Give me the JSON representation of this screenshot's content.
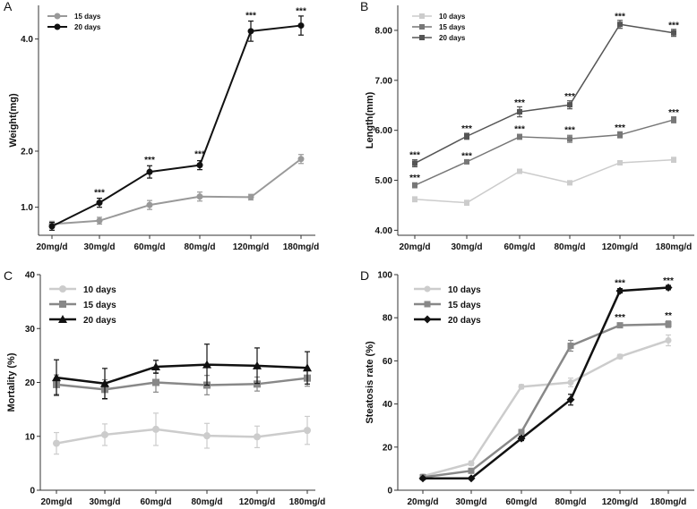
{
  "chart_data": [
    {
      "panel": "A",
      "type": "line",
      "categories": [
        "20mg/d",
        "30mg/d",
        "60mg/d",
        "80mg/d",
        "120mg/d",
        "180mg/d"
      ],
      "ylabel": "Weight(mg)",
      "ylim": [
        0.5,
        4.6
      ],
      "yticks": [
        1.0,
        2.0,
        4.0
      ],
      "ytick_labels": [
        "1.0",
        "2.0",
        "4.0"
      ],
      "legend": "top-left",
      "series": [
        {
          "name": "15 days",
          "color": "#999999",
          "marker": "circle",
          "values": [
            0.7,
            0.76,
            1.04,
            1.19,
            1.18,
            1.86
          ],
          "errors": [
            0.05,
            0.06,
            0.08,
            0.08,
            0.05,
            0.08
          ]
        },
        {
          "name": "20 days",
          "color": "#111111",
          "marker": "circle",
          "values": [
            0.66,
            1.08,
            1.63,
            1.75,
            4.14,
            4.24
          ],
          "errors": [
            0.07,
            0.08,
            0.11,
            0.08,
            0.18,
            0.17
          ]
        }
      ],
      "annotations": [
        {
          "category": 1,
          "text": "***",
          "y": 1.26
        },
        {
          "category": 2,
          "text": "***",
          "y": 1.84
        },
        {
          "category": 3,
          "text": "***",
          "y": 1.94
        },
        {
          "category": 4,
          "text": "***",
          "y": 4.42
        },
        {
          "category": 5,
          "text": "***",
          "y": 4.5
        }
      ]
    },
    {
      "panel": "B",
      "type": "line",
      "categories": [
        "20mg/d",
        "30mg/d",
        "60mg/d",
        "80mg/d",
        "120mg/d",
        "180mg/d"
      ],
      "ylabel": "Length(mm)",
      "ylim": [
        3.9,
        8.5
      ],
      "yticks": [
        4.0,
        5.0,
        6.0,
        7.0,
        8.0
      ],
      "ytick_labels": [
        "4.00",
        "5.00",
        "6.00",
        "7.00",
        "8.00"
      ],
      "legend": "top-left",
      "series": [
        {
          "name": "10 days",
          "color": "#cccccc",
          "marker": "square",
          "values": [
            4.62,
            4.55,
            5.18,
            4.95,
            5.35,
            5.41
          ],
          "errors": [
            0.05,
            0.05,
            0.04,
            0.04,
            0.03,
            0.05
          ]
        },
        {
          "name": "15 days",
          "color": "#777777",
          "marker": "square",
          "values": [
            4.9,
            5.37,
            5.87,
            5.83,
            5.91,
            6.21
          ],
          "errors": [
            0.05,
            0.04,
            0.05,
            0.07,
            0.06,
            0.06
          ]
        },
        {
          "name": "20 days",
          "color": "#555555",
          "marker": "square",
          "values": [
            5.34,
            5.88,
            6.37,
            6.51,
            8.12,
            7.95
          ],
          "errors": [
            0.07,
            0.06,
            0.1,
            0.08,
            0.08,
            0.07
          ]
        }
      ],
      "annotations": [
        {
          "category": 0,
          "text": "***",
          "y": 5.05
        },
        {
          "category": 0,
          "text": "***",
          "y": 5.5
        },
        {
          "category": 1,
          "text": "***",
          "y": 5.48
        },
        {
          "category": 1,
          "text": "***",
          "y": 6.03
        },
        {
          "category": 2,
          "text": "***",
          "y": 6.02
        },
        {
          "category": 2,
          "text": "***",
          "y": 6.55
        },
        {
          "category": 3,
          "text": "***",
          "y": 6.0
        },
        {
          "category": 3,
          "text": "***",
          "y": 6.67
        },
        {
          "category": 4,
          "text": "***",
          "y": 6.05
        },
        {
          "category": 4,
          "text": "***",
          "y": 8.28
        },
        {
          "category": 5,
          "text": "***",
          "y": 6.35
        },
        {
          "category": 5,
          "text": "***",
          "y": 8.1
        }
      ]
    },
    {
      "panel": "C",
      "type": "line",
      "categories": [
        "20mg/d",
        "30mg/d",
        "60mg/d",
        "80mg/d",
        "120mg/d",
        "180mg/d"
      ],
      "ylabel": "Mortality (%)",
      "ylim": [
        0,
        40
      ],
      "yticks": [
        0,
        10,
        20,
        30,
        40
      ],
      "ytick_labels": [
        "0",
        "10",
        "20",
        "30",
        "40"
      ],
      "legend": "top-left",
      "series": [
        {
          "name": "10 days",
          "color": "#cccccc",
          "marker": "circle",
          "values": [
            8.7,
            10.3,
            11.3,
            10.1,
            9.9,
            11.1
          ],
          "errors": [
            2.0,
            2.0,
            3.0,
            2.3,
            2.0,
            2.6
          ]
        },
        {
          "name": "15 days",
          "color": "#888888",
          "marker": "square",
          "values": [
            19.6,
            18.7,
            20.0,
            19.5,
            19.7,
            20.8
          ],
          "errors": [
            1.8,
            1.8,
            1.8,
            1.8,
            1.3,
            1.5
          ]
        },
        {
          "name": "20 days",
          "color": "#111111",
          "marker": "triangle",
          "values": [
            20.9,
            19.8,
            22.9,
            23.3,
            23.1,
            22.7
          ],
          "errors": [
            3.3,
            2.8,
            1.2,
            3.8,
            3.3,
            3.0
          ]
        }
      ],
      "annotations": []
    },
    {
      "panel": "D",
      "type": "line",
      "categories": [
        "20mg/d",
        "30mg/d",
        "60mg/d",
        "80mg/d",
        "120mg/d",
        "180mg/d"
      ],
      "ylabel": "Steatosis rate (%)",
      "ylim": [
        0,
        100
      ],
      "yticks": [
        0,
        20,
        40,
        60,
        80,
        100
      ],
      "ytick_labels": [
        "0",
        "20",
        "40",
        "60",
        "80",
        "100"
      ],
      "legend": "top-left",
      "series": [
        {
          "name": "10 days",
          "color": "#cccccc",
          "marker": "circle",
          "values": [
            6.5,
            12.5,
            48.0,
            50.0,
            62.0,
            69.5
          ],
          "errors": [
            1.0,
            1.0,
            1.0,
            2.0,
            1.0,
            2.5
          ]
        },
        {
          "name": "15 days",
          "color": "#888888",
          "marker": "square",
          "values": [
            6.0,
            9.0,
            27.0,
            67.0,
            76.5,
            77.0
          ],
          "errors": [
            1.0,
            1.0,
            1.0,
            2.5,
            1.0,
            1.5
          ]
        },
        {
          "name": "20 days",
          "color": "#111111",
          "marker": "diamond",
          "values": [
            5.5,
            5.5,
            24.0,
            42.0,
            92.5,
            94.0
          ],
          "errors": [
            0.5,
            0.5,
            1.0,
            2.5,
            1.0,
            1.0
          ]
        }
      ],
      "annotations": [
        {
          "category": 4,
          "text": "***",
          "y": 80
        },
        {
          "category": 4,
          "text": "***",
          "y": 96
        },
        {
          "category": 5,
          "text": "**",
          "y": 81
        },
        {
          "category": 5,
          "text": "***",
          "y": 97
        }
      ]
    }
  ]
}
